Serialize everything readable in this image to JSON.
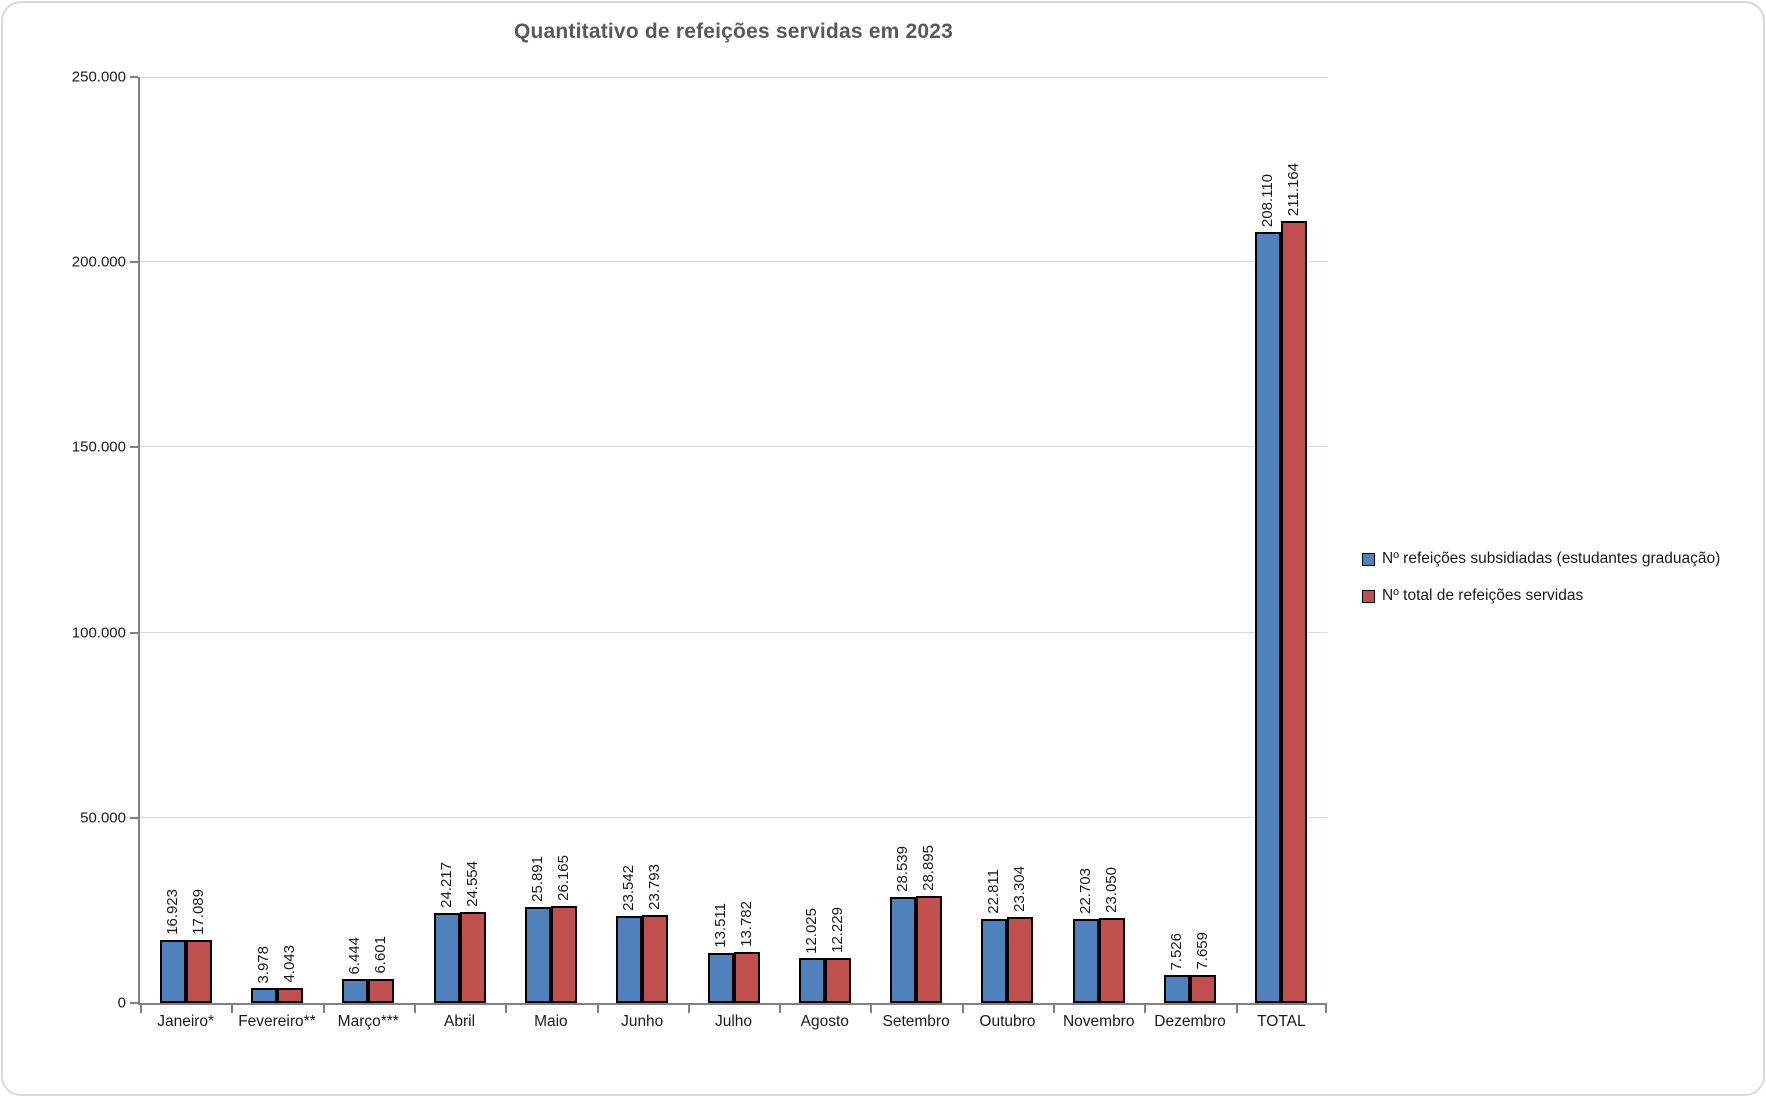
{
  "chart_data": {
    "type": "bar",
    "title": "Quantitativo de refeições servidas em 2023",
    "categories": [
      "Janeiro*",
      "Fevereiro**",
      "Março***",
      "Abril",
      "Maio",
      "Junho",
      "Julho",
      "Agosto",
      "Setembro",
      "Outubro",
      "Novembro",
      "Dezembro",
      "TOTAL"
    ],
    "series": [
      {
        "name": "Nº refeições subsidiadas (estudantes graduação)",
        "color": "#4F81BD",
        "border_color": "#000000",
        "values": [
          16923,
          3978,
          6444,
          24217,
          25891,
          23542,
          13511,
          12025,
          28539,
          22811,
          22703,
          7526,
          208110
        ]
      },
      {
        "name": "Nº total de refeições servidas",
        "color": "#C0504D",
        "border_color": "#000000",
        "values": [
          17089,
          4043,
          6601,
          24554,
          26165,
          23793,
          13782,
          12229,
          28895,
          23304,
          23050,
          7659,
          211164
        ]
      }
    ],
    "ylim": [
      0,
      250000
    ],
    "ytick_step": 50000,
    "ytick_labels": [
      "0",
      "50.000",
      "100.000",
      "150.000",
      "200.000",
      "250.000"
    ],
    "grid": true,
    "gridline_color": "#D9D9D9",
    "axis_color": "#808080",
    "title_color": "#595959",
    "legend_position": "right",
    "data_labels": {
      "visible": true,
      "rotation": 90,
      "thousands_separator": "."
    }
  }
}
